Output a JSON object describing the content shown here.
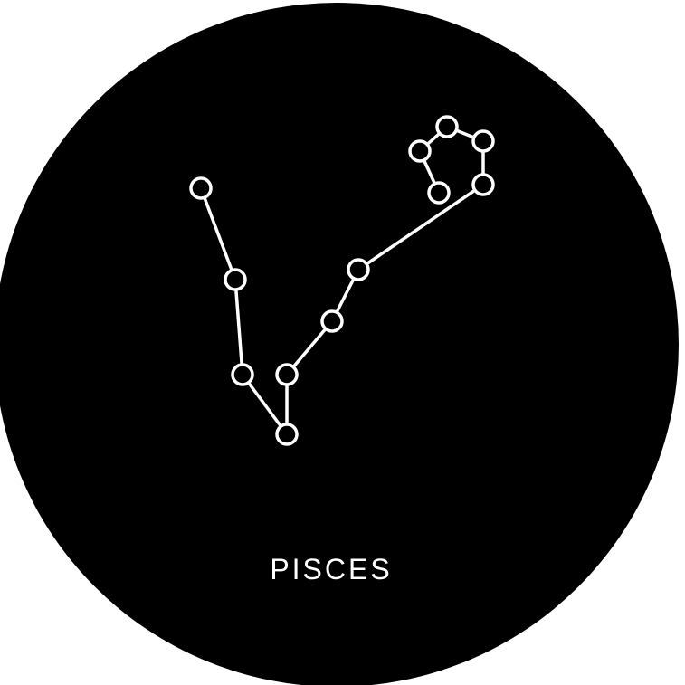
{
  "title": "PISCES",
  "colors": {
    "background": "#ffffff",
    "disc": "#000000",
    "stroke": "#ffffff",
    "text": "#ffffff"
  }
}
